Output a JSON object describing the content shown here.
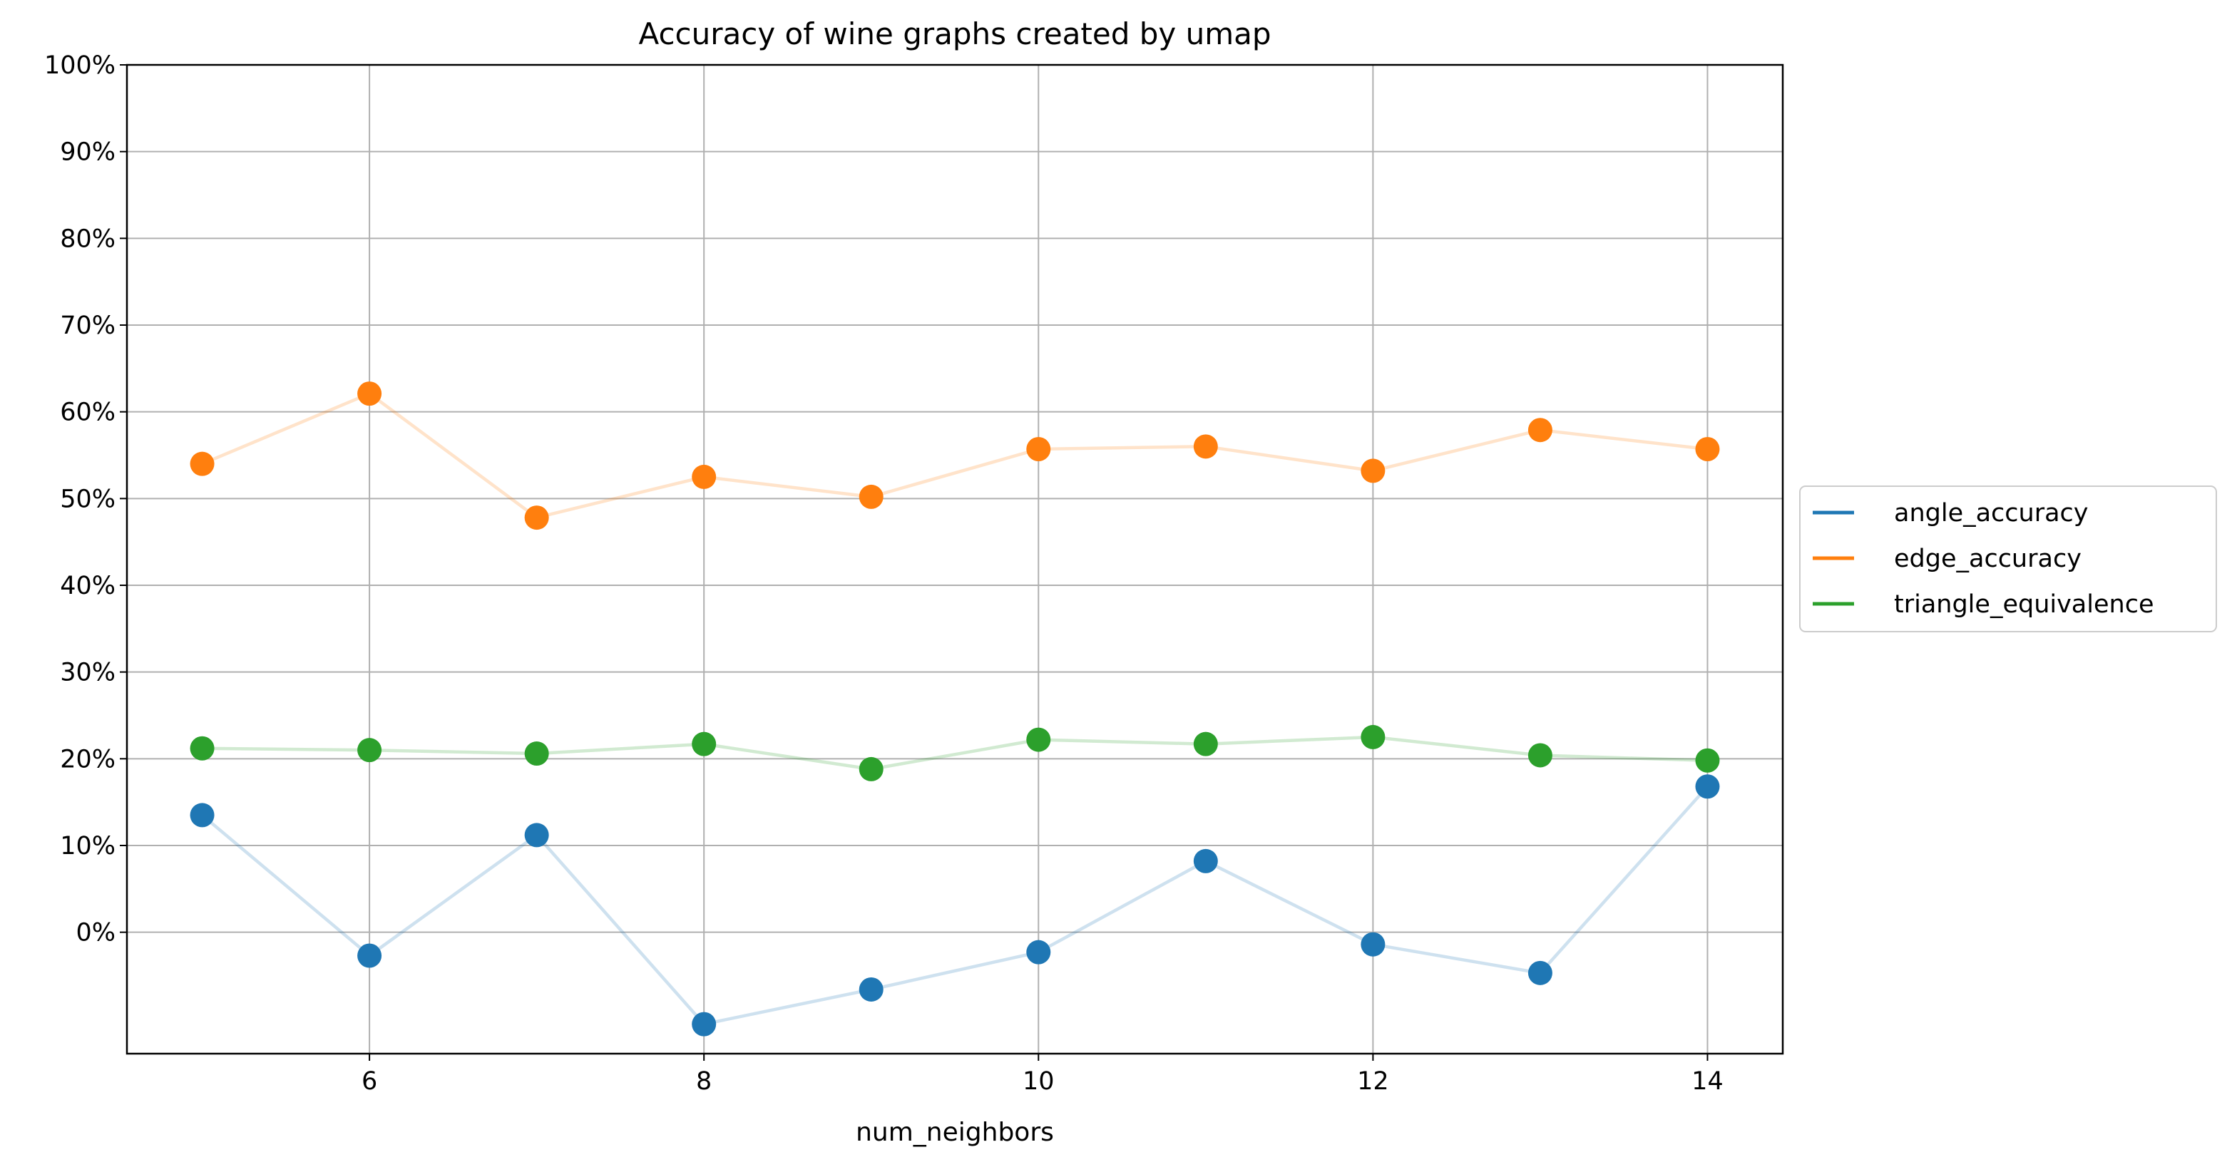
{
  "chart_data": {
    "type": "line",
    "title": "Accuracy of wine graphs created by umap",
    "xlabel": "num_neighbors",
    "ylabel": "",
    "x": [
      5,
      6,
      7,
      8,
      9,
      10,
      11,
      12,
      13,
      14
    ],
    "xlim": [
      4.55,
      14.45
    ],
    "ylim": [
      -14,
      100
    ],
    "x_ticks": [
      6,
      8,
      10,
      12,
      14
    ],
    "y_ticks": [
      0,
      10,
      20,
      30,
      40,
      50,
      60,
      70,
      80,
      90,
      100
    ],
    "y_tick_labels": [
      "0%",
      "10%",
      "20%",
      "30%",
      "40%",
      "50%",
      "60%",
      "70%",
      "80%",
      "90%",
      "100%"
    ],
    "grid": true,
    "legend_position": "right, outside plot area",
    "series": [
      {
        "name": "angle_accuracy",
        "color": "#1f77b4",
        "values": [
          13.5,
          -2.7,
          11.2,
          -10.6,
          -6.6,
          -2.3,
          8.2,
          -1.4,
          -4.7,
          16.8
        ]
      },
      {
        "name": "edge_accuracy",
        "color": "#ff7f0e",
        "values": [
          54.0,
          62.1,
          47.8,
          52.5,
          50.2,
          55.7,
          56.0,
          53.2,
          57.9,
          55.7
        ]
      },
      {
        "name": "triangle_equivalence",
        "color": "#2ca02c",
        "values": [
          21.2,
          21.0,
          20.6,
          21.7,
          18.8,
          22.2,
          21.7,
          22.5,
          20.4,
          19.8
        ]
      }
    ]
  }
}
